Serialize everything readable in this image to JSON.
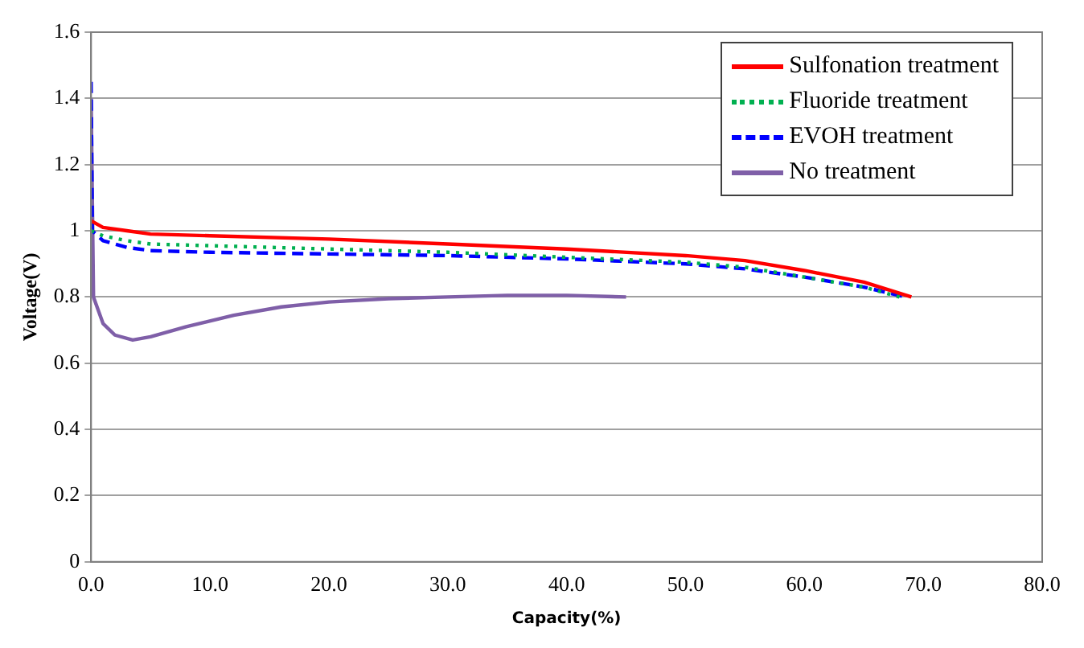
{
  "chart_data": {
    "type": "line",
    "xlabel": "Capacity(%)",
    "ylabel": "Voltage(V)",
    "xlim": [
      0,
      80
    ],
    "xticks": [
      {
        "value": 0,
        "label": "0.0"
      },
      {
        "value": 10,
        "label": "10.0"
      },
      {
        "value": 20,
        "label": "20.0"
      },
      {
        "value": 30,
        "label": "30.0"
      },
      {
        "value": 40,
        "label": "40.0"
      },
      {
        "value": 50,
        "label": "50.0"
      },
      {
        "value": 60,
        "label": "60.0"
      },
      {
        "value": 70,
        "label": "70.0"
      },
      {
        "value": 80,
        "label": "80.0"
      }
    ],
    "ylim": [
      0,
      1.6
    ],
    "yticks": [
      0,
      0.2,
      0.4,
      0.6,
      0.8,
      1,
      1.2,
      1.4,
      1.6
    ],
    "grid": "y",
    "legend": "top right",
    "marker": "none",
    "series": [
      {
        "name": "Sulfonation treatment",
        "color": "#ff0000",
        "line_style": "solid",
        "x": [
          0,
          1,
          3,
          5,
          10,
          20,
          30,
          40,
          50,
          55,
          60,
          65,
          69
        ],
        "values": [
          1.03,
          1.01,
          1.0,
          0.99,
          0.985,
          0.975,
          0.96,
          0.945,
          0.925,
          0.91,
          0.88,
          0.845,
          0.8
        ]
      },
      {
        "name": "Fluoride treatment",
        "color": "#00b050",
        "line_style": "dotted",
        "x": [
          0,
          1,
          3,
          5,
          10,
          20,
          30,
          40,
          50,
          55,
          60,
          65,
          68
        ],
        "values": [
          1.0,
          0.985,
          0.97,
          0.96,
          0.955,
          0.945,
          0.935,
          0.92,
          0.905,
          0.89,
          0.86,
          0.83,
          0.8
        ]
      },
      {
        "name": "EVOH treatment",
        "color": "#0000ff",
        "line_style": "dashed",
        "x": [
          0,
          0.1,
          1,
          3,
          5,
          10,
          20,
          30,
          40,
          50,
          55,
          60,
          65,
          68.5
        ],
        "values": [
          1.45,
          1.0,
          0.97,
          0.95,
          0.94,
          0.935,
          0.93,
          0.925,
          0.915,
          0.9,
          0.885,
          0.86,
          0.83,
          0.8
        ]
      },
      {
        "name": "No treatment",
        "color": "#7f5fa8",
        "line_style": "solid",
        "x": [
          0,
          0.2,
          1,
          2,
          3.5,
          5,
          8,
          12,
          16,
          20,
          25,
          30,
          35,
          40,
          45
        ],
        "values": [
          1.4,
          0.8,
          0.72,
          0.685,
          0.67,
          0.68,
          0.71,
          0.745,
          0.77,
          0.785,
          0.795,
          0.8,
          0.805,
          0.805,
          0.8
        ]
      }
    ]
  }
}
